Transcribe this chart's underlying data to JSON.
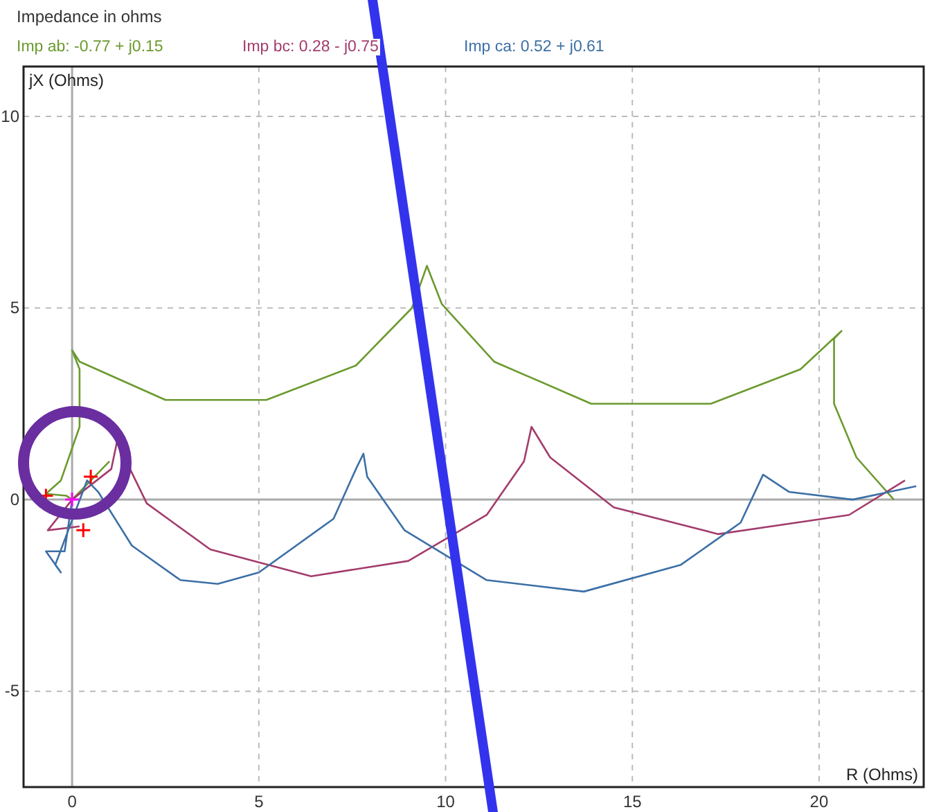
{
  "chart_data": {
    "type": "line",
    "title": "Impedance in ohms",
    "xlabel": "R (Ohms)",
    "ylabel": "jX (Ohms)",
    "xlim": [
      -1.3,
      22.8
    ],
    "ylim": [
      -7.5,
      11.3
    ],
    "xticks": [
      0,
      5,
      10,
      15,
      20
    ],
    "yticks": [
      -5,
      0,
      5,
      10
    ],
    "grid": true,
    "line_style": "solid",
    "series": [
      {
        "name": "Imp ab: -0.77 + j0.15",
        "color": "#6b9a2e",
        "x": [
          22.0,
          21.0,
          20.4,
          20.4,
          20.6,
          19.5,
          17.1,
          15.5,
          13.9,
          11.3,
          9.9,
          9.5,
          9.3,
          9.1,
          7.6,
          5.2,
          2.5,
          0.2,
          0.0,
          0.2,
          0.2,
          -0.3,
          -0.7,
          -0.15,
          0.0,
          1.0
        ],
        "values": [
          0.0,
          1.1,
          2.5,
          4.2,
          4.4,
          3.4,
          2.5,
          2.5,
          2.5,
          3.6,
          5.1,
          6.1,
          null,
          5.0,
          3.5,
          2.6,
          2.6,
          3.6,
          3.9,
          3.4,
          1.9,
          0.5,
          0.15,
          0.1,
          0.0,
          1.0
        ]
      },
      {
        "name": "Imp bc: 0.28 - j0.75",
        "color": "#a23c6c",
        "x": [
          22.3,
          20.8,
          17.3,
          14.5,
          12.8,
          12.3,
          12.1,
          11.1,
          9.0,
          6.4,
          3.7,
          2.0,
          1.2,
          1.05,
          0.0,
          -0.65,
          0.2
        ],
        "values": [
          0.5,
          -0.4,
          -0.9,
          -0.2,
          1.1,
          1.9,
          1.0,
          -0.4,
          -1.6,
          -2.0,
          -1.3,
          -0.1,
          1.5,
          0.8,
          0.0,
          -0.8,
          -0.7
        ]
      },
      {
        "name": "Imp ca: 0.52 + j0.61",
        "color": "#3c6fa6",
        "x": [
          22.6,
          20.9,
          19.2,
          18.5,
          17.9,
          16.3,
          13.7,
          11.1,
          8.9,
          7.9,
          7.8,
          7.6,
          7.0,
          5.0,
          3.9,
          2.9,
          1.6,
          0.7,
          0.4,
          -0.45,
          -0.3,
          -0.7,
          -0.2,
          0.0
        ],
        "values": [
          0.35,
          0.0,
          0.2,
          0.65,
          -0.6,
          -1.7,
          -2.4,
          -2.1,
          -0.8,
          0.6,
          1.2,
          0.8,
          -0.5,
          -1.9,
          -2.2,
          -2.1,
          -1.2,
          0.2,
          0.5,
          -1.7,
          -1.9,
          -1.35,
          -1.35,
          0.0
        ]
      },
      {
        "type": "scatter",
        "marker": "cross",
        "color": "#ff0000",
        "x": [
          -0.7,
          0.5,
          0.3
        ],
        "values": [
          0.1,
          0.6,
          -0.8
        ]
      },
      {
        "type": "scatter",
        "marker": "cross",
        "color": "#ff00ff",
        "x": [
          0.0
        ],
        "values": [
          0.0
        ]
      }
    ]
  }
}
